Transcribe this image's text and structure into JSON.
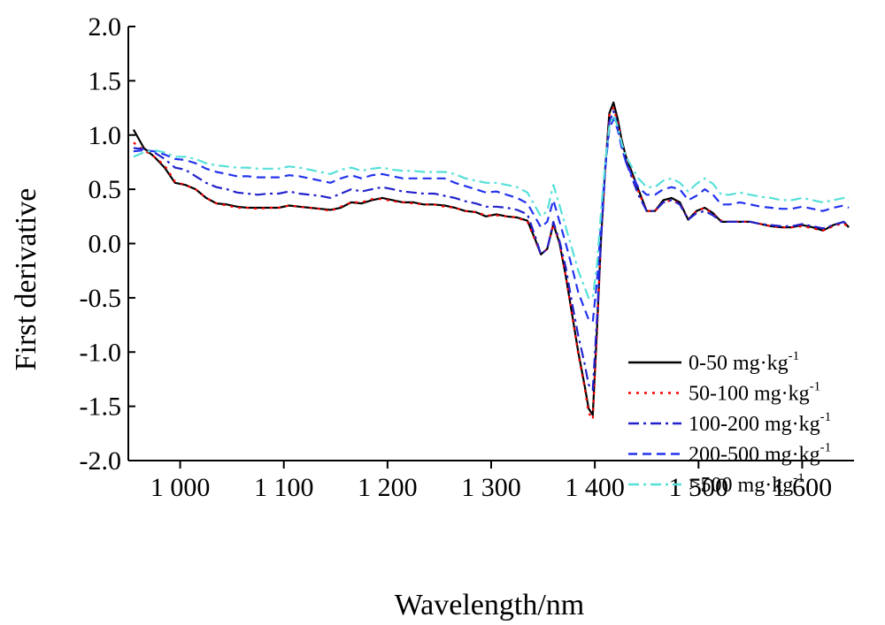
{
  "chart_data": {
    "type": "line",
    "xlabel": "Wavelength/nm",
    "ylabel": "First derivative",
    "xlim": [
      950,
      1650
    ],
    "ylim": [
      -2.0,
      2.0
    ],
    "x_ticks": [
      1000,
      1100,
      1200,
      1300,
      1400,
      1500,
      1600
    ],
    "x_tick_labels": [
      "1 000",
      "1 100",
      "1 200",
      "1 300",
      "1 400",
      "1 500",
      "1 600"
    ],
    "y_ticks": [
      -2.0,
      -1.5,
      -1.0,
      -0.5,
      0.0,
      0.5,
      1.0,
      1.5,
      2.0
    ],
    "y_tick_labels": [
      "-2.0",
      "-1.5",
      "-1.0",
      "-0.5",
      "0.0",
      "0.5",
      "1.0",
      "1.5",
      "2.0"
    ],
    "grid": false,
    "legend_position": "lower-right",
    "legend_unit_superscript": "-1",
    "x": [
      955,
      965,
      975,
      985,
      995,
      1005,
      1015,
      1025,
      1035,
      1045,
      1055,
      1065,
      1075,
      1085,
      1095,
      1105,
      1115,
      1125,
      1135,
      1145,
      1155,
      1165,
      1175,
      1185,
      1195,
      1205,
      1215,
      1225,
      1235,
      1245,
      1255,
      1265,
      1275,
      1285,
      1295,
      1305,
      1315,
      1325,
      1335,
      1342,
      1348,
      1354,
      1360,
      1366,
      1372,
      1378,
      1384,
      1390,
      1394,
      1398,
      1402,
      1406,
      1410,
      1414,
      1418,
      1422,
      1426,
      1430,
      1436,
      1442,
      1450,
      1458,
      1466,
      1474,
      1482,
      1490,
      1498,
      1506,
      1514,
      1522,
      1530,
      1540,
      1550,
      1560,
      1570,
      1580,
      1590,
      1600,
      1610,
      1620,
      1630,
      1640,
      1645
    ],
    "series": [
      {
        "name": "0-50 mg·kg",
        "color": "#000000",
        "dash": "solid",
        "values": [
          1.05,
          0.88,
          0.8,
          0.7,
          0.56,
          0.54,
          0.5,
          0.42,
          0.37,
          0.36,
          0.34,
          0.33,
          0.33,
          0.33,
          0.33,
          0.35,
          0.34,
          0.33,
          0.32,
          0.31,
          0.33,
          0.38,
          0.37,
          0.4,
          0.42,
          0.4,
          0.38,
          0.38,
          0.36,
          0.36,
          0.35,
          0.33,
          0.3,
          0.29,
          0.25,
          0.27,
          0.25,
          0.24,
          0.21,
          0.05,
          -0.1,
          -0.05,
          0.18,
          0.0,
          -0.3,
          -0.65,
          -1.0,
          -1.3,
          -1.52,
          -1.58,
          -0.8,
          0.05,
          0.7,
          1.2,
          1.3,
          1.15,
          0.95,
          0.8,
          0.65,
          0.5,
          0.3,
          0.3,
          0.4,
          0.42,
          0.38,
          0.22,
          0.3,
          0.33,
          0.28,
          0.2,
          0.2,
          0.2,
          0.2,
          0.18,
          0.16,
          0.15,
          0.15,
          0.17,
          0.15,
          0.12,
          0.17,
          0.2,
          0.15
        ]
      },
      {
        "name": "50-100 mg·kg",
        "color": "#ff0000",
        "dash": "dotted",
        "values": [
          0.93,
          0.86,
          0.8,
          0.72,
          0.57,
          0.54,
          0.5,
          0.42,
          0.37,
          0.35,
          0.33,
          0.33,
          0.32,
          0.33,
          0.33,
          0.35,
          0.34,
          0.33,
          0.32,
          0.3,
          0.34,
          0.38,
          0.38,
          0.41,
          0.41,
          0.39,
          0.38,
          0.37,
          0.36,
          0.36,
          0.34,
          0.33,
          0.3,
          0.29,
          0.26,
          0.26,
          0.25,
          0.24,
          0.2,
          0.04,
          -0.1,
          -0.05,
          0.18,
          0.0,
          -0.3,
          -0.66,
          -1.02,
          -1.32,
          -1.56,
          -1.62,
          -0.82,
          0.04,
          0.7,
          1.18,
          1.25,
          1.12,
          0.92,
          0.78,
          0.62,
          0.48,
          0.3,
          0.3,
          0.38,
          0.4,
          0.37,
          0.22,
          0.3,
          0.33,
          0.27,
          0.21,
          0.2,
          0.2,
          0.2,
          0.18,
          0.16,
          0.15,
          0.15,
          0.16,
          0.14,
          0.12,
          0.16,
          0.19,
          0.14
        ]
      },
      {
        "name": "100-200 mg·kg",
        "color": "#2222cc",
        "dash": "dashdot",
        "values": [
          0.88,
          0.87,
          0.84,
          0.78,
          0.7,
          0.68,
          0.62,
          0.56,
          0.52,
          0.5,
          0.47,
          0.46,
          0.45,
          0.46,
          0.46,
          0.48,
          0.46,
          0.45,
          0.44,
          0.42,
          0.46,
          0.5,
          0.48,
          0.5,
          0.52,
          0.5,
          0.48,
          0.47,
          0.46,
          0.46,
          0.44,
          0.42,
          0.39,
          0.37,
          0.34,
          0.34,
          0.33,
          0.31,
          0.27,
          0.08,
          -0.1,
          -0.05,
          0.2,
          0.02,
          -0.22,
          -0.55,
          -0.85,
          -1.1,
          -1.3,
          -1.35,
          -0.7,
          0.05,
          0.68,
          1.12,
          1.22,
          1.08,
          0.9,
          0.75,
          0.6,
          0.45,
          0.3,
          0.3,
          0.38,
          0.4,
          0.36,
          0.22,
          0.28,
          0.3,
          0.26,
          0.2,
          0.2,
          0.2,
          0.2,
          0.18,
          0.17,
          0.16,
          0.16,
          0.18,
          0.16,
          0.14,
          0.17,
          0.2,
          0.16
        ]
      },
      {
        "name": "200-500 mg·kg",
        "color": "#2233ee",
        "dash": "dashed",
        "values": [
          0.85,
          0.86,
          0.85,
          0.82,
          0.78,
          0.77,
          0.74,
          0.69,
          0.66,
          0.64,
          0.62,
          0.62,
          0.61,
          0.61,
          0.61,
          0.63,
          0.62,
          0.6,
          0.58,
          0.56,
          0.6,
          0.63,
          0.6,
          0.63,
          0.64,
          0.62,
          0.6,
          0.6,
          0.6,
          0.6,
          0.6,
          0.56,
          0.53,
          0.5,
          0.47,
          0.48,
          0.45,
          0.42,
          0.37,
          0.25,
          0.15,
          0.2,
          0.4,
          0.2,
          0.0,
          -0.22,
          -0.45,
          -0.6,
          -0.7,
          -0.72,
          -0.35,
          0.2,
          0.7,
          1.05,
          1.15,
          1.05,
          0.88,
          0.75,
          0.62,
          0.52,
          0.45,
          0.45,
          0.5,
          0.52,
          0.5,
          0.4,
          0.44,
          0.5,
          0.45,
          0.36,
          0.36,
          0.38,
          0.36,
          0.34,
          0.33,
          0.32,
          0.32,
          0.34,
          0.32,
          0.3,
          0.33,
          0.35,
          0.33
        ]
      },
      {
        "name": ">500 mg·kg",
        "color": "#55e0d8",
        "dash": "dashdot",
        "values": [
          0.8,
          0.84,
          0.86,
          0.84,
          0.8,
          0.8,
          0.78,
          0.74,
          0.72,
          0.71,
          0.7,
          0.7,
          0.69,
          0.69,
          0.69,
          0.71,
          0.7,
          0.68,
          0.66,
          0.64,
          0.68,
          0.7,
          0.67,
          0.69,
          0.7,
          0.68,
          0.67,
          0.67,
          0.66,
          0.66,
          0.66,
          0.64,
          0.6,
          0.58,
          0.56,
          0.56,
          0.54,
          0.52,
          0.47,
          0.35,
          0.25,
          0.3,
          0.54,
          0.35,
          0.15,
          -0.05,
          -0.25,
          -0.4,
          -0.5,
          -0.5,
          -0.2,
          0.3,
          0.75,
          1.08,
          1.18,
          1.08,
          0.92,
          0.8,
          0.7,
          0.6,
          0.52,
          0.52,
          0.58,
          0.6,
          0.56,
          0.48,
          0.55,
          0.6,
          0.55,
          0.45,
          0.45,
          0.47,
          0.45,
          0.43,
          0.42,
          0.4,
          0.4,
          0.42,
          0.4,
          0.38,
          0.4,
          0.42,
          0.4
        ]
      }
    ]
  }
}
